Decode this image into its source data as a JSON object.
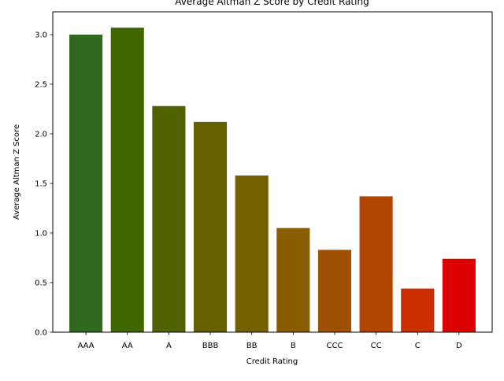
{
  "chart_data": {
    "type": "bar",
    "title": "Average Altman Z Score by Credit Rating",
    "xlabel": "Credit Rating",
    "ylabel": "Average Altman Z Score",
    "categories": [
      "AAA",
      "AA",
      "A",
      "BBB",
      "BB",
      "B",
      "CCC",
      "CC",
      "C",
      "D"
    ],
    "values": [
      3.0,
      3.07,
      2.28,
      2.12,
      1.58,
      1.05,
      0.83,
      1.37,
      0.44,
      0.74
    ],
    "colors": [
      "#31681f",
      "#3f6700",
      "#4f6200",
      "#656100",
      "#746000",
      "#8a5c00",
      "#9d5100",
      "#b04500",
      "#cd2e00",
      "#dd0000"
    ],
    "ylim": [
      0,
      3.23
    ],
    "yticks": [
      "0.0",
      "0.5",
      "1.0",
      "1.5",
      "2.0",
      "2.5",
      "3.0"
    ],
    "grid": false,
    "legend": "none"
  }
}
